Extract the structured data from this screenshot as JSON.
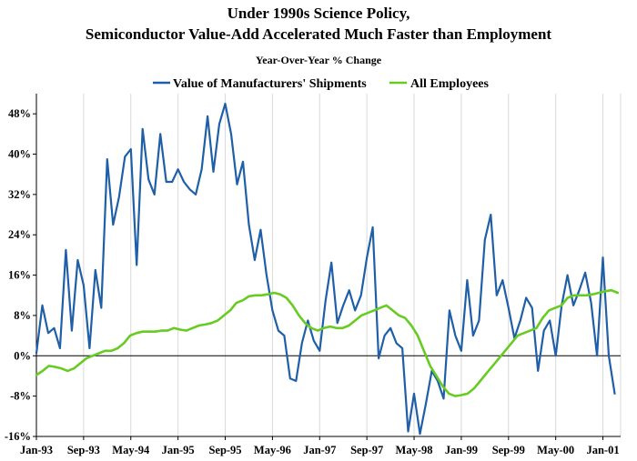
{
  "chart_data": {
    "type": "line",
    "title_line1": "Under 1990s Science Policy,",
    "title_line2": "Semiconductor Value-Add Accelerated Much Faster than Employment",
    "subtitle": "Year-Over-Year % Change",
    "ylim": [
      -16,
      52
    ],
    "y_ticks": [
      -16,
      -8,
      0,
      8,
      16,
      24,
      32,
      40,
      48
    ],
    "y_tick_labels": [
      "-16%",
      "-8%",
      "0%",
      "8%",
      "16%",
      "24%",
      "32%",
      "40%",
      "48%"
    ],
    "grid": "vertical",
    "legend_position": "top",
    "x_start": "Jan-93",
    "x_end": "Mar-01",
    "x_tick_labels": [
      "Jan-93",
      "Sep-93",
      "May-94",
      "Jan-95",
      "Sep-95",
      "May-96",
      "Jan-97",
      "Sep-97",
      "May-98",
      "Jan-99",
      "Sep-99",
      "May-00",
      "Jan-01"
    ],
    "x_tick_month_index": [
      0,
      8,
      16,
      24,
      32,
      40,
      48,
      56,
      64,
      72,
      80,
      88,
      96
    ],
    "series": [
      {
        "name": "Value of Manufacturers' Shipments",
        "color": "#1f5fa8",
        "values": [
          0.5,
          10,
          4.5,
          5.5,
          1.5,
          21,
          5,
          19,
          14,
          1.5,
          17,
          9.5,
          39,
          26,
          31.5,
          39.5,
          41,
          18,
          45,
          35,
          32,
          44,
          34.5,
          34.5,
          37,
          34.5,
          33,
          32,
          37,
          47.5,
          36.5,
          46,
          50,
          44,
          34,
          38.5,
          26,
          19,
          25,
          16,
          9,
          5,
          4,
          -4.5,
          -5,
          2.5,
          7,
          3,
          1,
          11,
          18.5,
          6.5,
          10,
          13,
          9,
          12,
          19.5,
          25.5,
          -0.5,
          4,
          5.5,
          2.5,
          1.5,
          -15,
          -7.5,
          -15.5,
          -9.5,
          -3,
          -5,
          -8.5,
          9,
          4,
          1,
          15,
          4,
          7,
          23,
          28,
          12,
          15,
          9.5,
          3.5,
          7,
          11.5,
          9.5,
          -3,
          5,
          7,
          0,
          10,
          16,
          10,
          13,
          16.5,
          10.5,
          0,
          19.5,
          0,
          -7.5
        ],
        "last_month_index": 98
      },
      {
        "name": "All Employees",
        "color": "#66cc22",
        "values": [
          -3.8,
          -3,
          -2,
          -2.2,
          -2.5,
          -3,
          -2.5,
          -1.5,
          -0.5,
          0,
          0.5,
          1,
          1,
          1.5,
          2.5,
          4,
          4.5,
          4.8,
          4.8,
          4.8,
          5,
          5,
          5.5,
          5.2,
          5,
          5.5,
          6,
          6.2,
          6.5,
          7,
          8,
          9,
          10.5,
          11,
          11.8,
          12,
          12,
          12.2,
          12.5,
          12.2,
          11.5,
          10,
          8,
          6.5,
          5.5,
          5,
          5.5,
          5.8,
          5.5,
          5.5,
          6,
          7,
          8,
          8.5,
          9,
          9.5,
          10,
          9,
          8,
          7.5,
          6,
          4,
          1,
          -2,
          -4,
          -6,
          -7.5,
          -8,
          -7.8,
          -7.5,
          -6.5,
          -5,
          -3.5,
          -2,
          -0.5,
          1,
          2.5,
          4,
          4.5,
          5,
          5.5,
          7.5,
          9,
          9.5,
          10,
          11.5,
          12,
          12,
          12,
          12.2,
          12.5,
          12.8,
          13,
          12.5
        ],
        "x_offset_months": 0,
        "x_end_month_index": 98.5
      }
    ]
  }
}
